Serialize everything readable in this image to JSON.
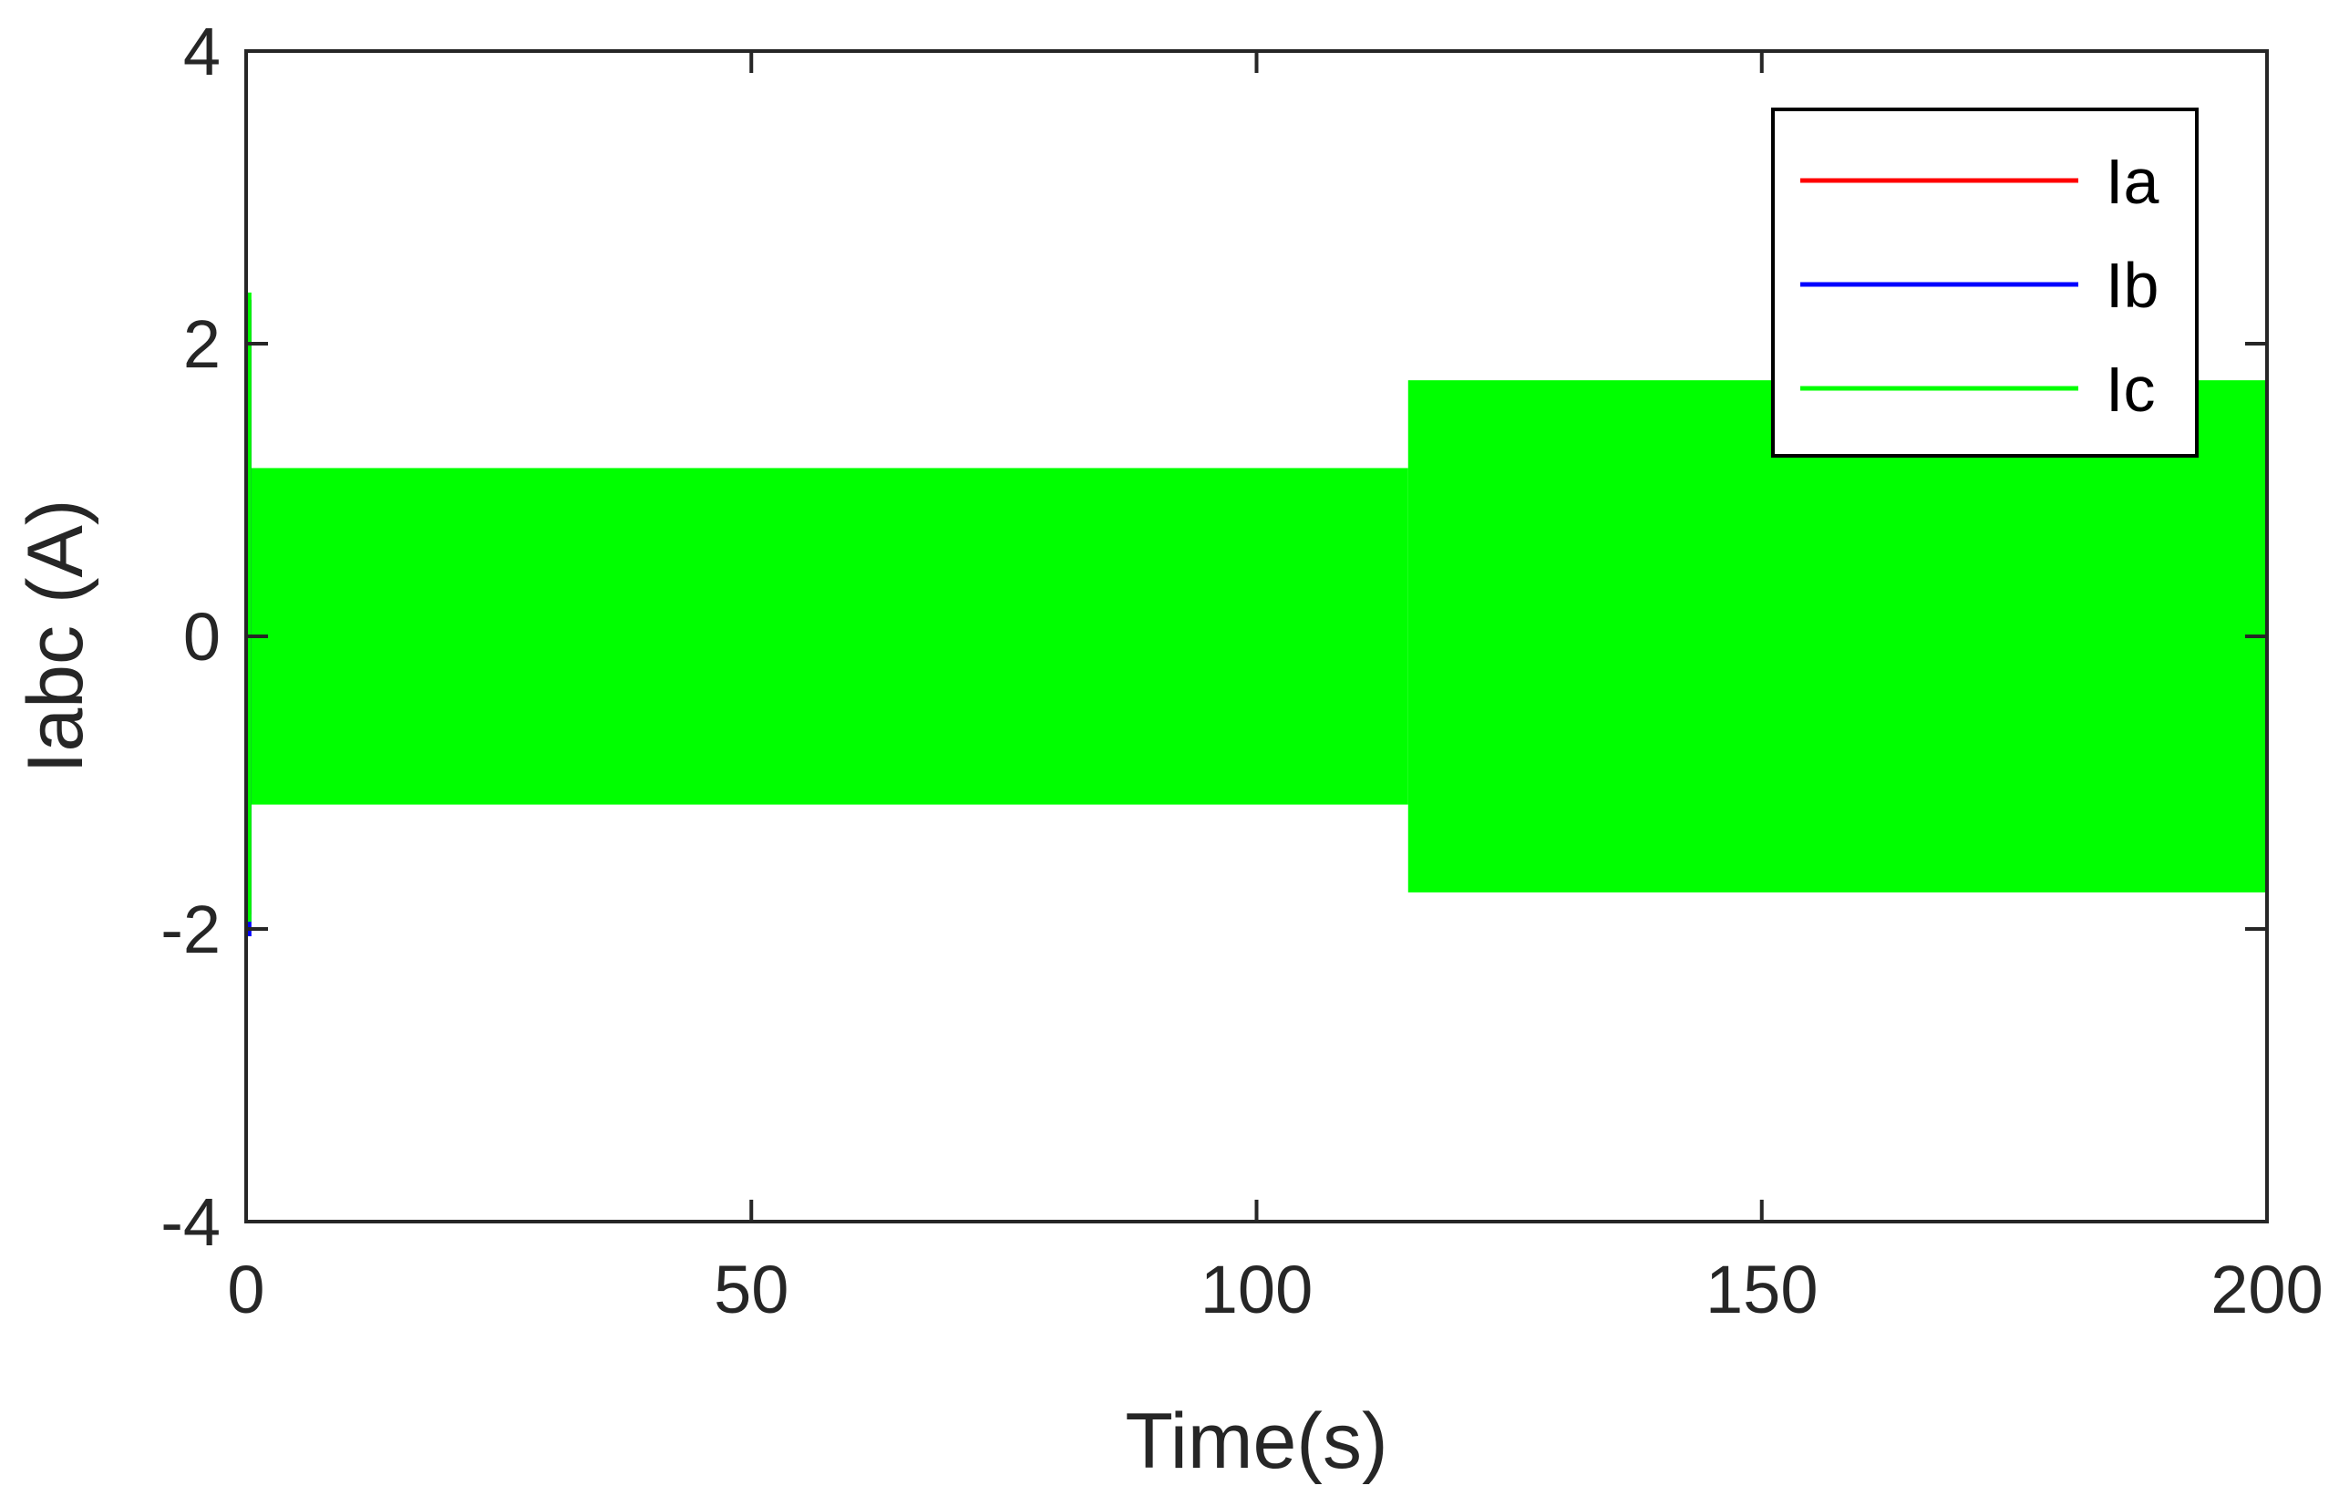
{
  "chart_data": {
    "type": "line",
    "xlabel": "Time(s)",
    "ylabel": "Iabc (A)",
    "xlim": [
      0,
      200
    ],
    "ylim": [
      -4,
      4
    ],
    "xticks": [
      0,
      50,
      100,
      150,
      200
    ],
    "yticks": [
      -4,
      -2,
      0,
      2,
      4
    ],
    "grid": false,
    "legend_position": "top-right",
    "series": [
      {
        "name": "Ia",
        "color": "#ff0000",
        "segments": [
          {
            "x_start": 0,
            "x_end": 115,
            "amplitude": 1.15
          },
          {
            "x_start": 115,
            "x_end": 200,
            "amplitude": 1.75
          }
        ],
        "startup_spike": {
          "x": 0.3,
          "max": 2.3,
          "min": -1.9
        },
        "drawn": false
      },
      {
        "name": "Ib",
        "color": "#0000ff",
        "segments": [
          {
            "x_start": 0,
            "x_end": 115,
            "amplitude": 1.15
          },
          {
            "x_start": 115,
            "x_end": 200,
            "amplitude": 1.75
          }
        ],
        "startup_spike": {
          "x": 0.3,
          "max": 2.3,
          "min": -2.05
        },
        "drawn": false
      },
      {
        "name": "Ic",
        "color": "#00ff00",
        "segments": [
          {
            "x_start": 0,
            "x_end": 115,
            "amplitude": 1.15
          },
          {
            "x_start": 115,
            "x_end": 200,
            "amplitude": 1.75
          }
        ],
        "startup_spike": {
          "x": 0.3,
          "max": 2.35,
          "min": -1.95
        },
        "drawn": true
      }
    ]
  }
}
